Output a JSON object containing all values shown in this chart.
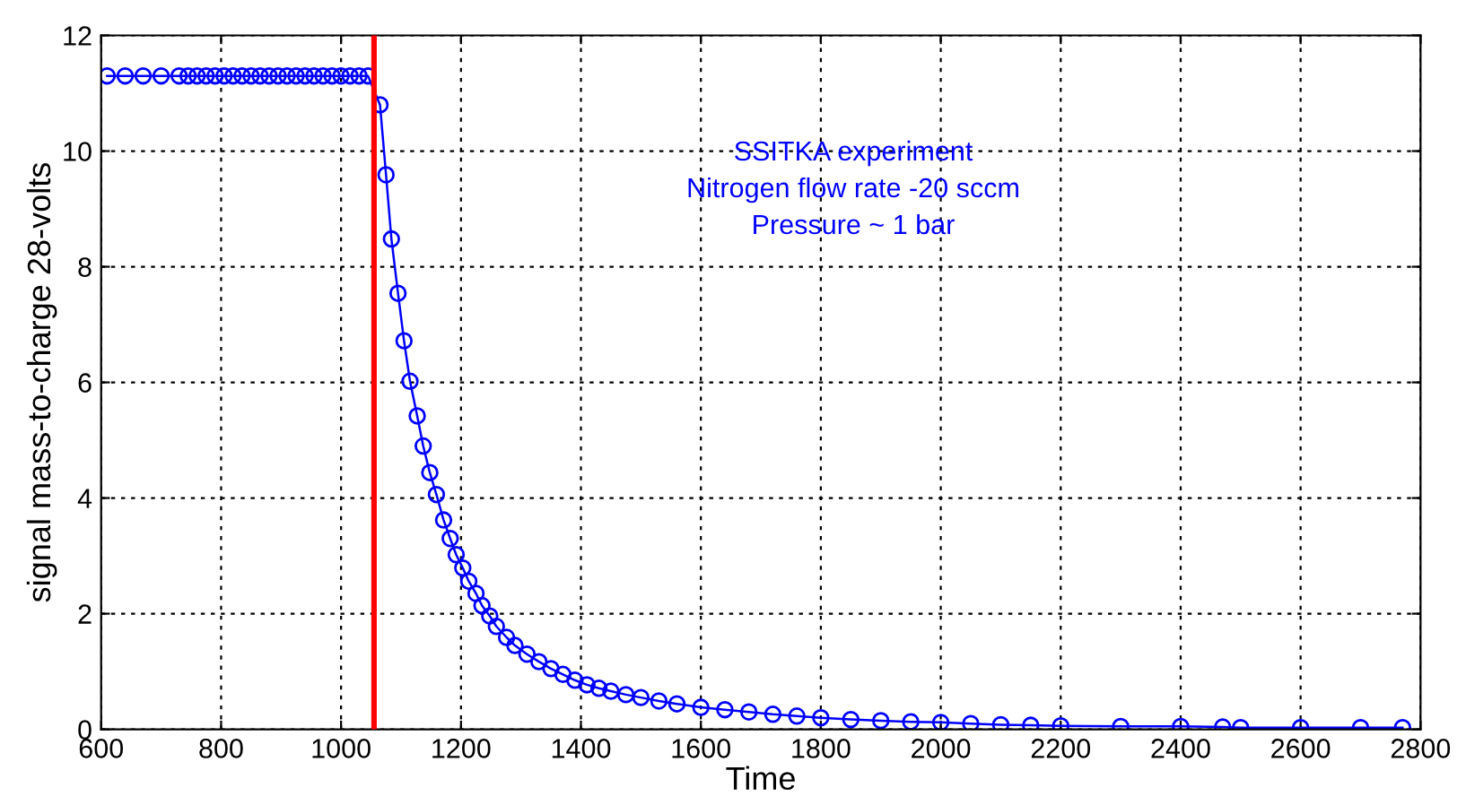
{
  "chart_data": {
    "type": "line",
    "xlabel": "Time",
    "ylabel": "signal mass-to-charge 28-volts",
    "annotations": [
      "SSITKA experiment",
      "Nitrogen flow rate -20 sccm",
      "Pressure ~ 1 bar"
    ],
    "series": [
      {
        "color": "#0000ff",
        "x": [
          610,
          640,
          670,
          700,
          730,
          745,
          760,
          775,
          790,
          805,
          820,
          835,
          850,
          865,
          880,
          895,
          910,
          925,
          940,
          955,
          970,
          985,
          1000,
          1015,
          1030,
          1045,
          1065,
          1075,
          1084,
          1095,
          1105,
          1115,
          1127,
          1137,
          1148,
          1159,
          1171,
          1182,
          1192,
          1203,
          1213,
          1225,
          1235,
          1248,
          1259,
          1276,
          1290,
          1310,
          1330,
          1350,
          1370,
          1390,
          1410,
          1430,
          1450,
          1475,
          1500,
          1530,
          1560,
          1600,
          1640,
          1680,
          1720,
          1760,
          1800,
          1850,
          1900,
          1950,
          2000,
          2050,
          2100,
          2150,
          2200,
          2300,
          2400,
          2470,
          2500,
          2600,
          2700,
          2770
        ],
        "values": [
          11.3,
          11.3,
          11.3,
          11.3,
          11.3,
          11.3,
          11.3,
          11.3,
          11.3,
          11.3,
          11.3,
          11.3,
          11.3,
          11.3,
          11.3,
          11.3,
          11.3,
          11.3,
          11.3,
          11.3,
          11.3,
          11.3,
          11.3,
          11.3,
          11.3,
          11.3,
          10.8,
          9.59,
          8.48,
          7.54,
          6.72,
          6.02,
          5.42,
          4.9,
          4.44,
          4.06,
          3.62,
          3.3,
          3.02,
          2.79,
          2.56,
          2.35,
          2.14,
          1.96,
          1.78,
          1.59,
          1.45,
          1.3,
          1.17,
          1.05,
          0.95,
          0.85,
          0.77,
          0.71,
          0.66,
          0.6,
          0.55,
          0.49,
          0.44,
          0.38,
          0.34,
          0.3,
          0.26,
          0.23,
          0.2,
          0.17,
          0.15,
          0.13,
          0.12,
          0.1,
          0.08,
          0.07,
          0.06,
          0.05,
          0.05,
          0.04,
          0.03,
          0.03,
          0.03,
          0.03
        ]
      }
    ],
    "ref_lines": [
      {
        "axis": "x",
        "value": 1055,
        "color": "#ff0000",
        "line_style": "solid"
      }
    ],
    "xlim": [
      600,
      2800
    ],
    "xticks": [
      600,
      800,
      1000,
      1200,
      1400,
      1600,
      1800,
      2000,
      2200,
      2400,
      2600,
      2800
    ],
    "ylim": [
      0,
      12
    ],
    "yticks": [
      0,
      2,
      4,
      6,
      8,
      10,
      12
    ],
    "grid": true,
    "legend": false,
    "marker": "circle",
    "line_style": "solid"
  }
}
